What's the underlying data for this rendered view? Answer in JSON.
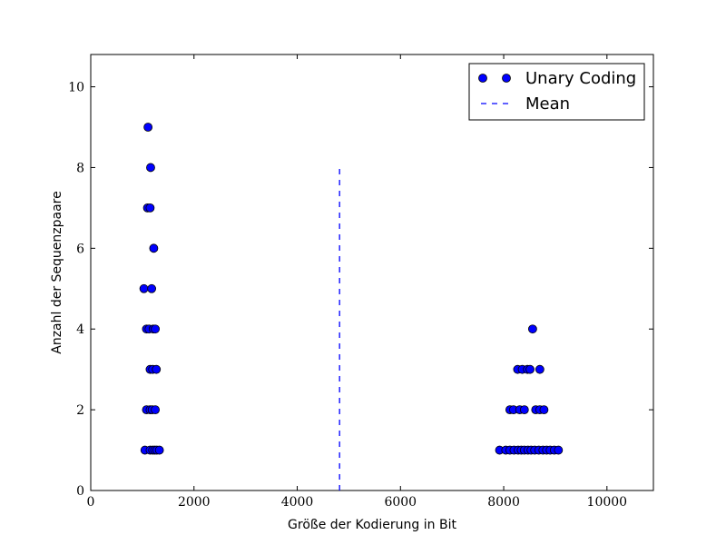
{
  "chart_data": {
    "type": "scatter",
    "xlabel": "Größe der Kodierung in Bit",
    "ylabel": "Anzahl der Sequenzpaare",
    "xlim": [
      0,
      10900
    ],
    "ylim": [
      0,
      10.8
    ],
    "xticks": [
      0,
      2000,
      4000,
      6000,
      8000,
      10000
    ],
    "yticks": [
      0,
      2,
      4,
      6,
      8,
      10
    ],
    "grid": false,
    "legend_position": "top-right",
    "colors": {
      "series": "#0000ff",
      "edge": "#000000",
      "axis": "#000000"
    },
    "series": [
      {
        "name": "Unary Coding",
        "marker": "circle",
        "points": [
          {
            "x": 1050,
            "y": 1
          },
          {
            "x": 1150,
            "y": 1
          },
          {
            "x": 1200,
            "y": 1
          },
          {
            "x": 1240,
            "y": 1
          },
          {
            "x": 1280,
            "y": 1
          },
          {
            "x": 1330,
            "y": 1
          },
          {
            "x": 1080,
            "y": 2
          },
          {
            "x": 1150,
            "y": 2
          },
          {
            "x": 1190,
            "y": 2
          },
          {
            "x": 1250,
            "y": 2
          },
          {
            "x": 1150,
            "y": 3
          },
          {
            "x": 1200,
            "y": 3
          },
          {
            "x": 1270,
            "y": 3
          },
          {
            "x": 1080,
            "y": 4
          },
          {
            "x": 1130,
            "y": 4
          },
          {
            "x": 1210,
            "y": 4
          },
          {
            "x": 1250,
            "y": 4
          },
          {
            "x": 1030,
            "y": 5
          },
          {
            "x": 1180,
            "y": 5
          },
          {
            "x": 1220,
            "y": 6
          },
          {
            "x": 1100,
            "y": 7
          },
          {
            "x": 1150,
            "y": 7
          },
          {
            "x": 1160,
            "y": 8
          },
          {
            "x": 1110,
            "y": 9
          },
          {
            "x": 7920,
            "y": 1
          },
          {
            "x": 8040,
            "y": 1
          },
          {
            "x": 8120,
            "y": 1
          },
          {
            "x": 8200,
            "y": 1
          },
          {
            "x": 8280,
            "y": 1
          },
          {
            "x": 8340,
            "y": 1
          },
          {
            "x": 8400,
            "y": 1
          },
          {
            "x": 8470,
            "y": 1
          },
          {
            "x": 8530,
            "y": 1
          },
          {
            "x": 8600,
            "y": 1
          },
          {
            "x": 8680,
            "y": 1
          },
          {
            "x": 8760,
            "y": 1
          },
          {
            "x": 8830,
            "y": 1
          },
          {
            "x": 8900,
            "y": 1
          },
          {
            "x": 8980,
            "y": 1
          },
          {
            "x": 9060,
            "y": 1
          },
          {
            "x": 8120,
            "y": 2
          },
          {
            "x": 8190,
            "y": 2
          },
          {
            "x": 8310,
            "y": 2
          },
          {
            "x": 8400,
            "y": 2
          },
          {
            "x": 8620,
            "y": 2
          },
          {
            "x": 8700,
            "y": 2
          },
          {
            "x": 8780,
            "y": 2
          },
          {
            "x": 8270,
            "y": 3
          },
          {
            "x": 8360,
            "y": 3
          },
          {
            "x": 8460,
            "y": 3
          },
          {
            "x": 8510,
            "y": 3
          },
          {
            "x": 8700,
            "y": 3
          },
          {
            "x": 8560,
            "y": 4
          }
        ]
      },
      {
        "name": "Mean",
        "style": "dashed",
        "x": 4820,
        "y_range": [
          0,
          8
        ]
      }
    ]
  }
}
